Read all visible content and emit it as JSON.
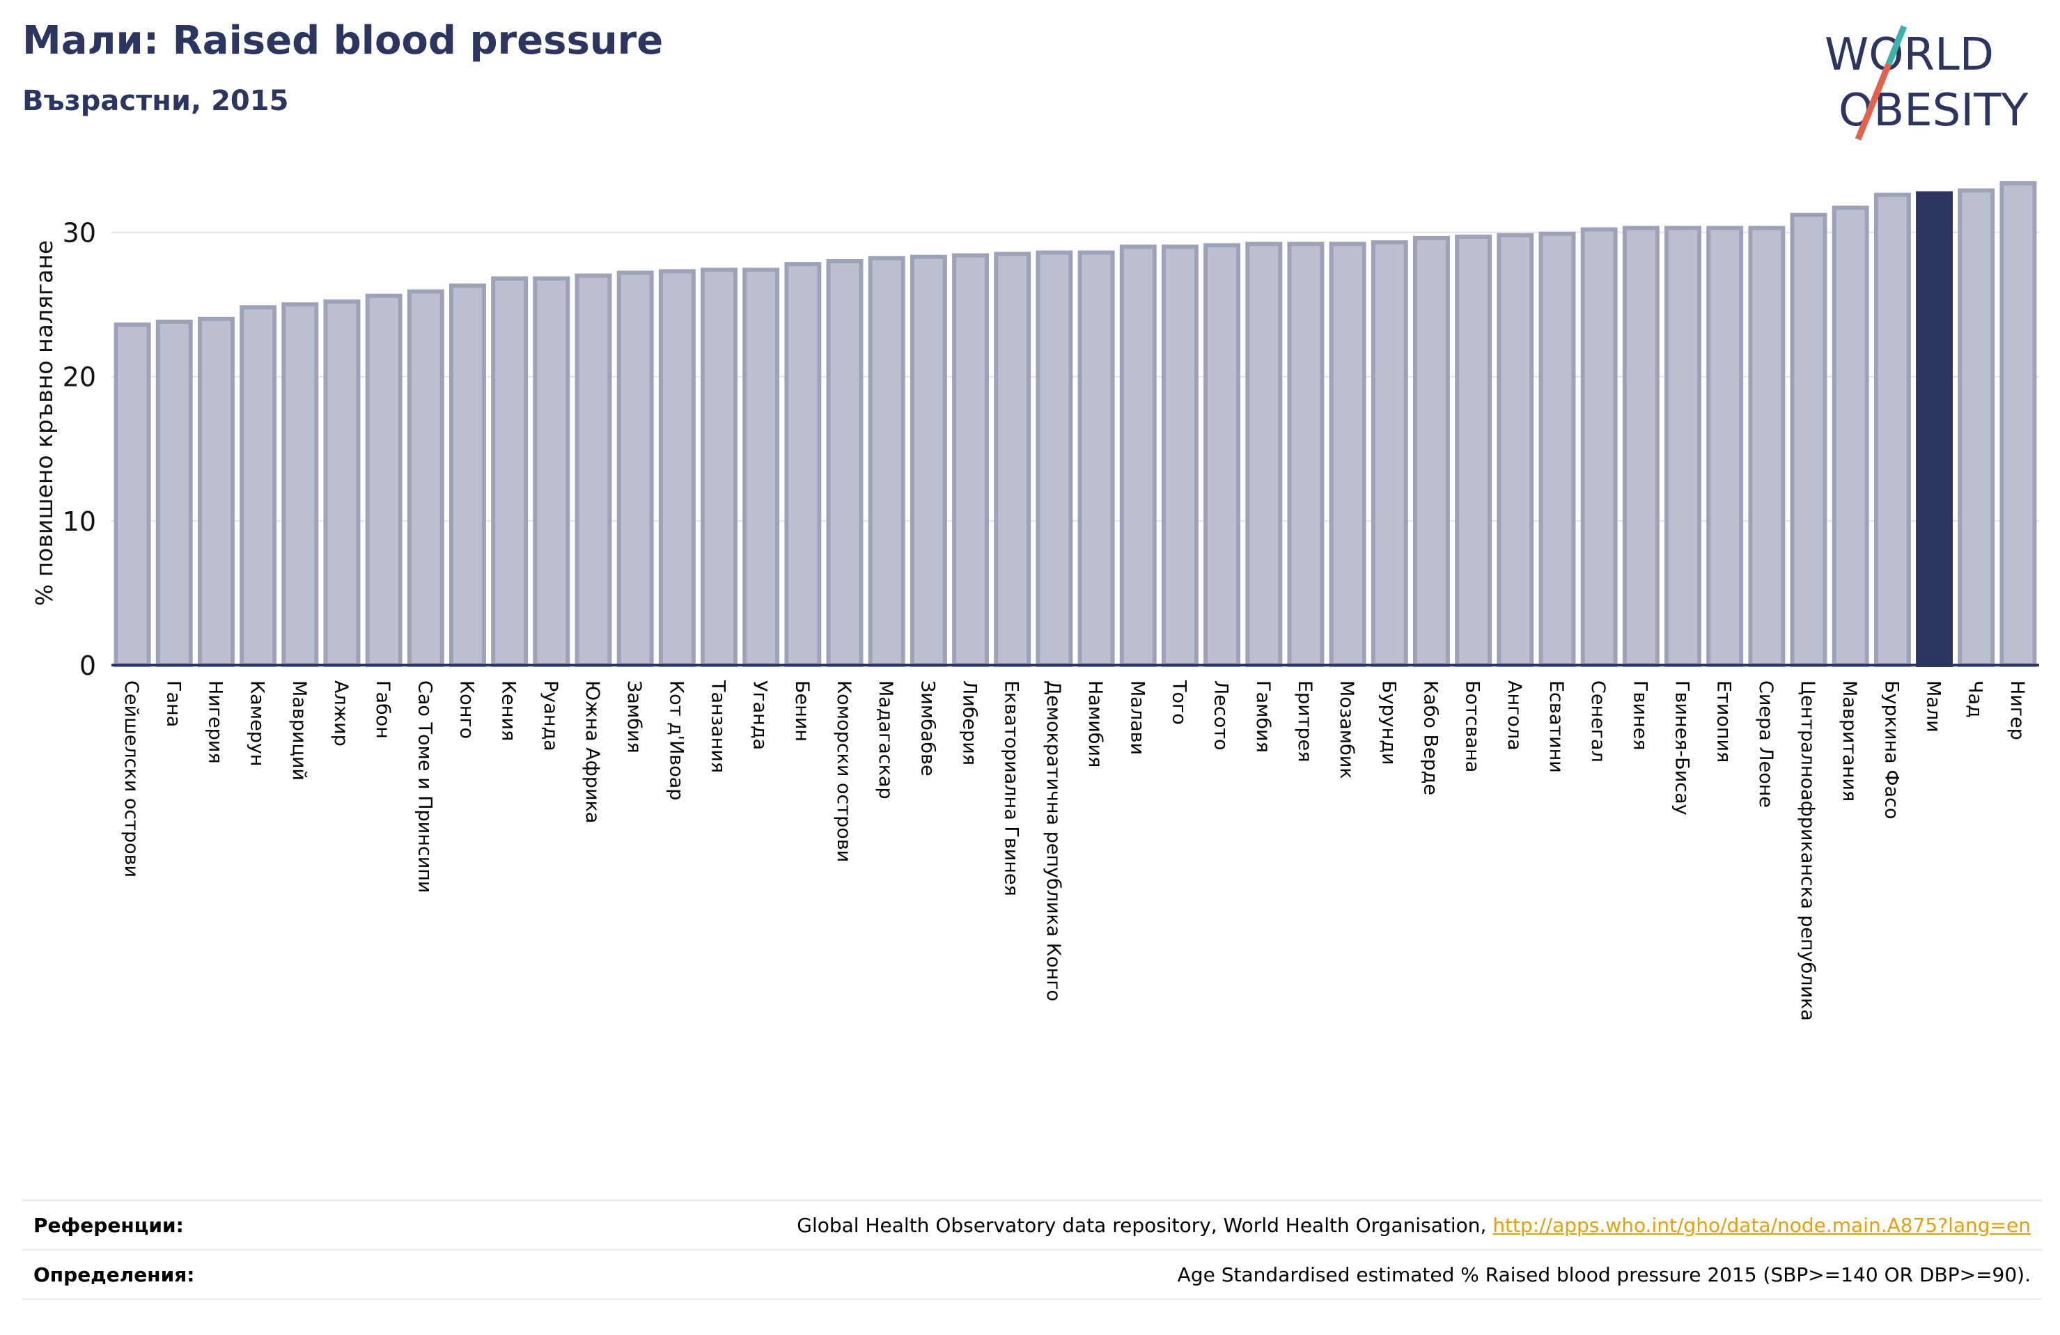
{
  "title": "Мали: Raised blood pressure",
  "subtitle": "Възрастни, 2015",
  "logo": {
    "line1": "WORLD",
    "line2": "OBESITY"
  },
  "colors": {
    "bar": "#bcbfcf",
    "bar_edge": "#9ea2b8",
    "highlight": "#2b355f",
    "text": "#2b355f"
  },
  "chart_data": {
    "type": "bar",
    "ylabel": "% повишено кръвно налягане",
    "xlabel": "",
    "ylim": [
      0,
      35
    ],
    "yticks": [
      0,
      10,
      20,
      30
    ],
    "grid": true,
    "highlight": "Мали",
    "categories": [
      "Сейшелски острови",
      "Гана",
      "Нигерия",
      "Камерун",
      "Мавриций",
      "Алжир",
      "Габон",
      "Сао Томе и Принсипи",
      "Конго",
      "Кения",
      "Руанда",
      "Южна Африка",
      "Замбия",
      "Кот д'Ивоар",
      "Танзания",
      "Уганда",
      "Бенин",
      "Коморски острови",
      "Мадагаскар",
      "Зимбабве",
      "Либерия",
      "Екваториална Гвинея",
      "Демократична република Конго",
      "Намибия",
      "Малави",
      "Того",
      "Лесото",
      "Гамбия",
      "Еритрея",
      "Мозамбик",
      "Бурунди",
      "Кабо Верде",
      "Ботсвана",
      "Ангола",
      "Есватини",
      "Сенегал",
      "Гвинея",
      "Гвинея-Бисау",
      "Етиопия",
      "Сиера Леоне",
      "Централноафриканска република",
      "Мавритания",
      "Буркина Фасо",
      "Мали",
      "Чад",
      "Нигер"
    ],
    "values": [
      23.6,
      23.8,
      24.0,
      24.8,
      25.0,
      25.2,
      25.6,
      25.9,
      26.3,
      26.8,
      26.8,
      27.0,
      27.2,
      27.3,
      27.4,
      27.4,
      27.8,
      28.0,
      28.2,
      28.3,
      28.4,
      28.5,
      28.6,
      28.6,
      29.0,
      29.0,
      29.1,
      29.2,
      29.2,
      29.2,
      29.3,
      29.6,
      29.7,
      29.8,
      29.9,
      30.2,
      30.3,
      30.3,
      30.3,
      30.3,
      31.2,
      31.7,
      32.6,
      32.7,
      32.9,
      33.4
    ]
  },
  "footer": {
    "references_label": "Референции:",
    "references_text": "Global Health Observatory data repository, World Health Organisation,",
    "references_link": "http://apps.who.int/gho/data/node.main.A875?lang=en",
    "definitions_label": "Определения:",
    "definitions_text": "Age Standardised estimated % Raised blood pressure 2015 (SBP>=140 OR DBP>=90)."
  }
}
